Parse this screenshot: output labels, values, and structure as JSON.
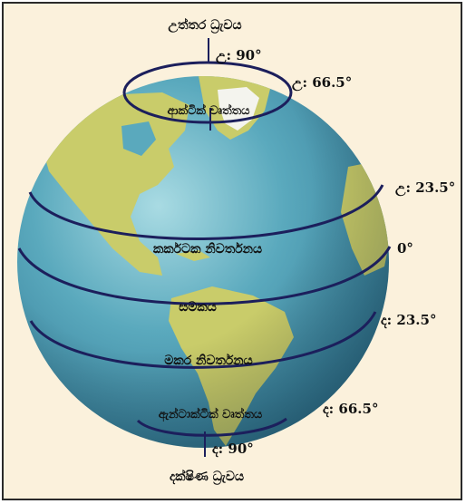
{
  "diagram": {
    "labels": {
      "north_pole": "උත්තර ධ්‍රැවය",
      "arctic_circle": "ආක්ටික් වෘත්තය",
      "tropic_of_cancer": "කර්කටක නිවර්තනය",
      "equator": "සමකය",
      "tropic_of_capricorn": "මකර නිවර්තනය",
      "antarctic_circle": "ඇන්ටාක්ටික් වෘත්තය",
      "south_pole": "දක්ෂිණ ධ්‍රැවය"
    },
    "latitudes": {
      "north_90": "උ: 90°",
      "north_66_5": "උ: 66.5°",
      "north_23_5": "උ: 23.5°",
      "equator_0": "0°",
      "south_23_5": "ද: 23.5°",
      "south_66_5": "ද: 66.5°",
      "south_90": "ද: 90°"
    },
    "colors": {
      "ocean": "#4f9fb6",
      "land": "#c9cc6a",
      "lines": "#1c1f5c",
      "background": "#fbf1dc"
    }
  }
}
